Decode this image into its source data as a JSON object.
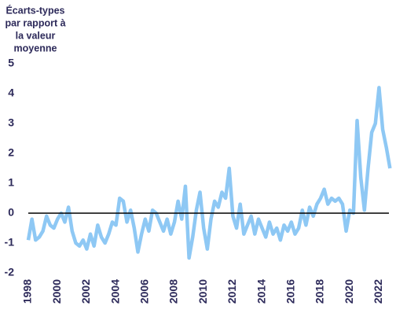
{
  "chart_data": {
    "type": "line",
    "ylabel": [
      "Écarts-types",
      "par rapport à",
      "la valeur",
      "moyenne"
    ],
    "x": [
      1998.0,
      1998.25,
      1998.5,
      1998.75,
      1999.0,
      1999.25,
      1999.5,
      1999.75,
      2000.0,
      2000.25,
      2000.5,
      2000.75,
      2001.0,
      2001.25,
      2001.5,
      2001.75,
      2002.0,
      2002.25,
      2002.5,
      2002.75,
      2003.0,
      2003.25,
      2003.5,
      2003.75,
      2004.0,
      2004.25,
      2004.5,
      2004.75,
      2005.0,
      2005.25,
      2005.5,
      2005.75,
      2006.0,
      2006.25,
      2006.5,
      2006.75,
      2007.0,
      2007.25,
      2007.5,
      2007.75,
      2008.0,
      2008.25,
      2008.5,
      2008.75,
      2009.0,
      2009.25,
      2009.5,
      2009.75,
      2010.0,
      2010.25,
      2010.5,
      2010.75,
      2011.0,
      2011.25,
      2011.5,
      2011.75,
      2012.0,
      2012.25,
      2012.5,
      2012.75,
      2013.0,
      2013.25,
      2013.5,
      2013.75,
      2014.0,
      2014.25,
      2014.5,
      2014.75,
      2015.0,
      2015.25,
      2015.5,
      2015.75,
      2016.0,
      2016.25,
      2016.5,
      2016.75,
      2017.0,
      2017.25,
      2017.5,
      2017.75,
      2018.0,
      2018.25,
      2018.5,
      2018.75,
      2019.0,
      2019.25,
      2019.5,
      2019.75,
      2020.0,
      2020.25,
      2020.5,
      2020.75,
      2021.0,
      2021.25,
      2021.5,
      2021.75,
      2022.0,
      2022.25,
      2022.5,
      2022.75
    ],
    "series": [
      {
        "color": "#8ec8f4",
        "values": [
          -0.9,
          -0.2,
          -0.9,
          -0.8,
          -0.6,
          -0.1,
          -0.4,
          -0.5,
          -0.2,
          0.0,
          -0.3,
          0.2,
          -0.6,
          -1.0,
          -1.1,
          -0.9,
          -1.2,
          -0.7,
          -1.1,
          -0.4,
          -0.8,
          -1.0,
          -0.7,
          -0.3,
          -0.4,
          0.5,
          0.4,
          -0.3,
          0.1,
          -0.5,
          -1.3,
          -0.7,
          -0.2,
          -0.6,
          0.1,
          0.0,
          -0.3,
          -0.6,
          -0.2,
          -0.7,
          -0.3,
          0.4,
          -0.2,
          0.9,
          -1.5,
          -0.8,
          0.1,
          0.7,
          -0.5,
          -1.2,
          -0.2,
          0.4,
          0.2,
          0.7,
          0.5,
          1.5,
          -0.1,
          -0.5,
          0.3,
          -0.7,
          -0.4,
          -0.1,
          -0.7,
          -0.2,
          -0.5,
          -0.8,
          -0.3,
          -0.7,
          -0.5,
          -0.9,
          -0.4,
          -0.6,
          -0.3,
          -0.7,
          -0.5,
          0.1,
          -0.4,
          0.2,
          -0.1,
          0.3,
          0.5,
          0.8,
          0.3,
          0.5,
          0.4,
          0.5,
          0.3,
          -0.6,
          0.1,
          0.0,
          3.1,
          1.2,
          0.1,
          1.5,
          2.7,
          3.0,
          4.2,
          2.8,
          2.2,
          1.5
        ]
      }
    ],
    "xlim": [
      1998,
      2023
    ],
    "xticks": [
      1998,
      2000,
      2002,
      2004,
      2006,
      2008,
      2010,
      2012,
      2014,
      2016,
      2018,
      2020,
      2022
    ],
    "ylim": [
      -2,
      5
    ],
    "yticks": [
      -2,
      -1,
      0,
      1,
      2,
      3,
      4,
      5
    ],
    "zero_line": true
  }
}
